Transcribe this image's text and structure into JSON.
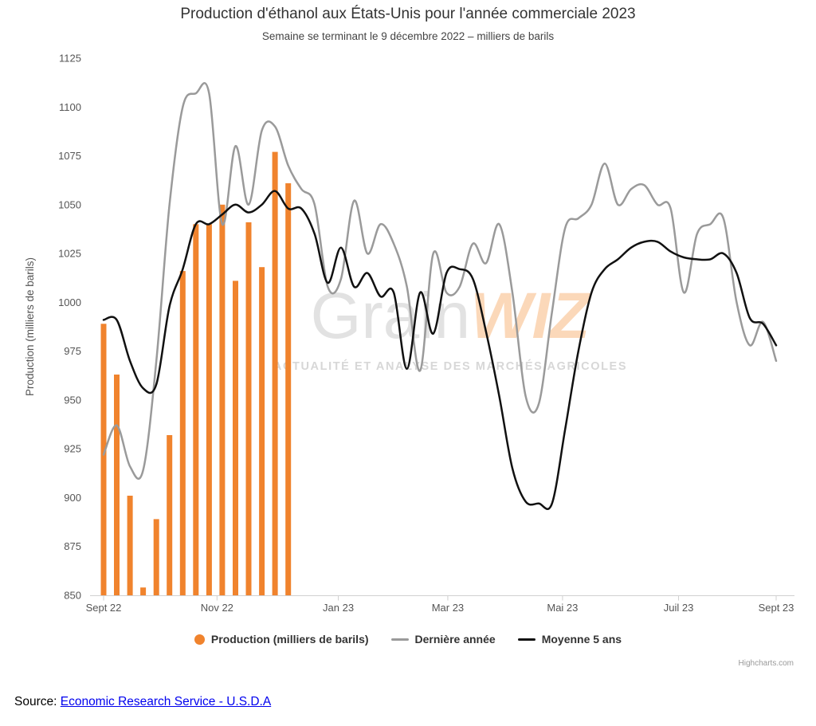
{
  "title": "Production d'éthanol aux États-Unis pour l'année commerciale 2023",
  "subtitle": "Semaine se terminant le 9 décembre 2022 – milliers de barils",
  "watermark": {
    "brand_light": "Grain",
    "brand_accent": "WIZ",
    "tagline": "ACTUALITÉ ET ANALYSE DES MARCHÉS AGRICOLES"
  },
  "legend": {
    "items": [
      {
        "label": "Production (milliers de barils)",
        "symbol": "circle",
        "color": "#f0832d"
      },
      {
        "label": "Dernière année",
        "symbol": "line",
        "color": "#9a9a9a"
      },
      {
        "label": "Moyenne 5 ans",
        "symbol": "line",
        "color": "#111111"
      }
    ]
  },
  "credits": "Highcharts.com",
  "source": {
    "prefix": "Source: ",
    "link_text": "Economic Research Service - U.S.D.A"
  },
  "chart_data": {
    "type": "combo",
    "title": "Production d'éthanol aux États-Unis pour l'année commerciale 2023",
    "subtitle": "Semaine se terminant le 9 décembre 2022 – milliers de barils",
    "ylabel": "Production (milliers de barils)",
    "ylim": [
      850,
      1125
    ],
    "yticks": [
      850,
      875,
      900,
      925,
      950,
      975,
      1000,
      1025,
      1050,
      1075,
      1100,
      1125
    ],
    "grid": false,
    "legend_position": "bottom",
    "x_axis": {
      "unit": "week",
      "range_weeks": [
        0,
        51
      ],
      "ticks": [
        {
          "label": "Sept 22",
          "week": 0
        },
        {
          "label": "Nov 22",
          "week": 8.6
        },
        {
          "label": "Jan 23",
          "week": 17.8
        },
        {
          "label": "Mar 23",
          "week": 26.1
        },
        {
          "label": "Mai 23",
          "week": 34.8
        },
        {
          "label": "Juil 23",
          "week": 43.6
        },
        {
          "label": "Sept 23",
          "week": 51
        }
      ]
    },
    "series": [
      {
        "name": "Production (milliers de barils)",
        "type": "bar",
        "color": "#f0832d",
        "x_weeks": [
          0,
          1,
          2,
          3,
          4,
          5,
          6,
          7,
          8,
          9,
          10,
          11,
          12,
          13,
          14
        ],
        "values": [
          989,
          963,
          901,
          854,
          889,
          932,
          1016,
          1040,
          1040,
          1050,
          1011,
          1041,
          1018,
          1077,
          1061
        ]
      },
      {
        "name": "Dernière année",
        "type": "spline",
        "color": "#9a9a9a",
        "x_start_week": 0,
        "values": [
          922,
          937,
          916,
          914,
          970,
          1050,
          1100,
          1107,
          1107,
          1040,
          1080,
          1050,
          1088,
          1090,
          1070,
          1058,
          1050,
          1008,
          1012,
          1052,
          1025,
          1040,
          1030,
          1008,
          965,
          1025,
          1005,
          1008,
          1030,
          1020,
          1040,
          1005,
          952,
          948,
          995,
          1038,
          1043,
          1050,
          1071,
          1050,
          1058,
          1060,
          1050,
          1048,
          1005,
          1035,
          1040,
          1043,
          1000,
          978,
          990,
          970
        ]
      },
      {
        "name": "Moyenne 5 ans",
        "type": "spline",
        "color": "#111111",
        "x_start_week": 0,
        "values": [
          991,
          991,
          970,
          956,
          958,
          998,
          1017,
          1040,
          1040,
          1045,
          1050,
          1046,
          1050,
          1057,
          1048,
          1048,
          1035,
          1010,
          1028,
          1008,
          1015,
          1003,
          1005,
          966,
          1005,
          984,
          1015,
          1017,
          1012,
          985,
          952,
          915,
          898,
          897,
          897,
          935,
          975,
          1005,
          1017,
          1022,
          1028,
          1031,
          1031,
          1026,
          1023,
          1022,
          1022,
          1025,
          1015,
          992,
          989,
          978
        ]
      }
    ]
  }
}
